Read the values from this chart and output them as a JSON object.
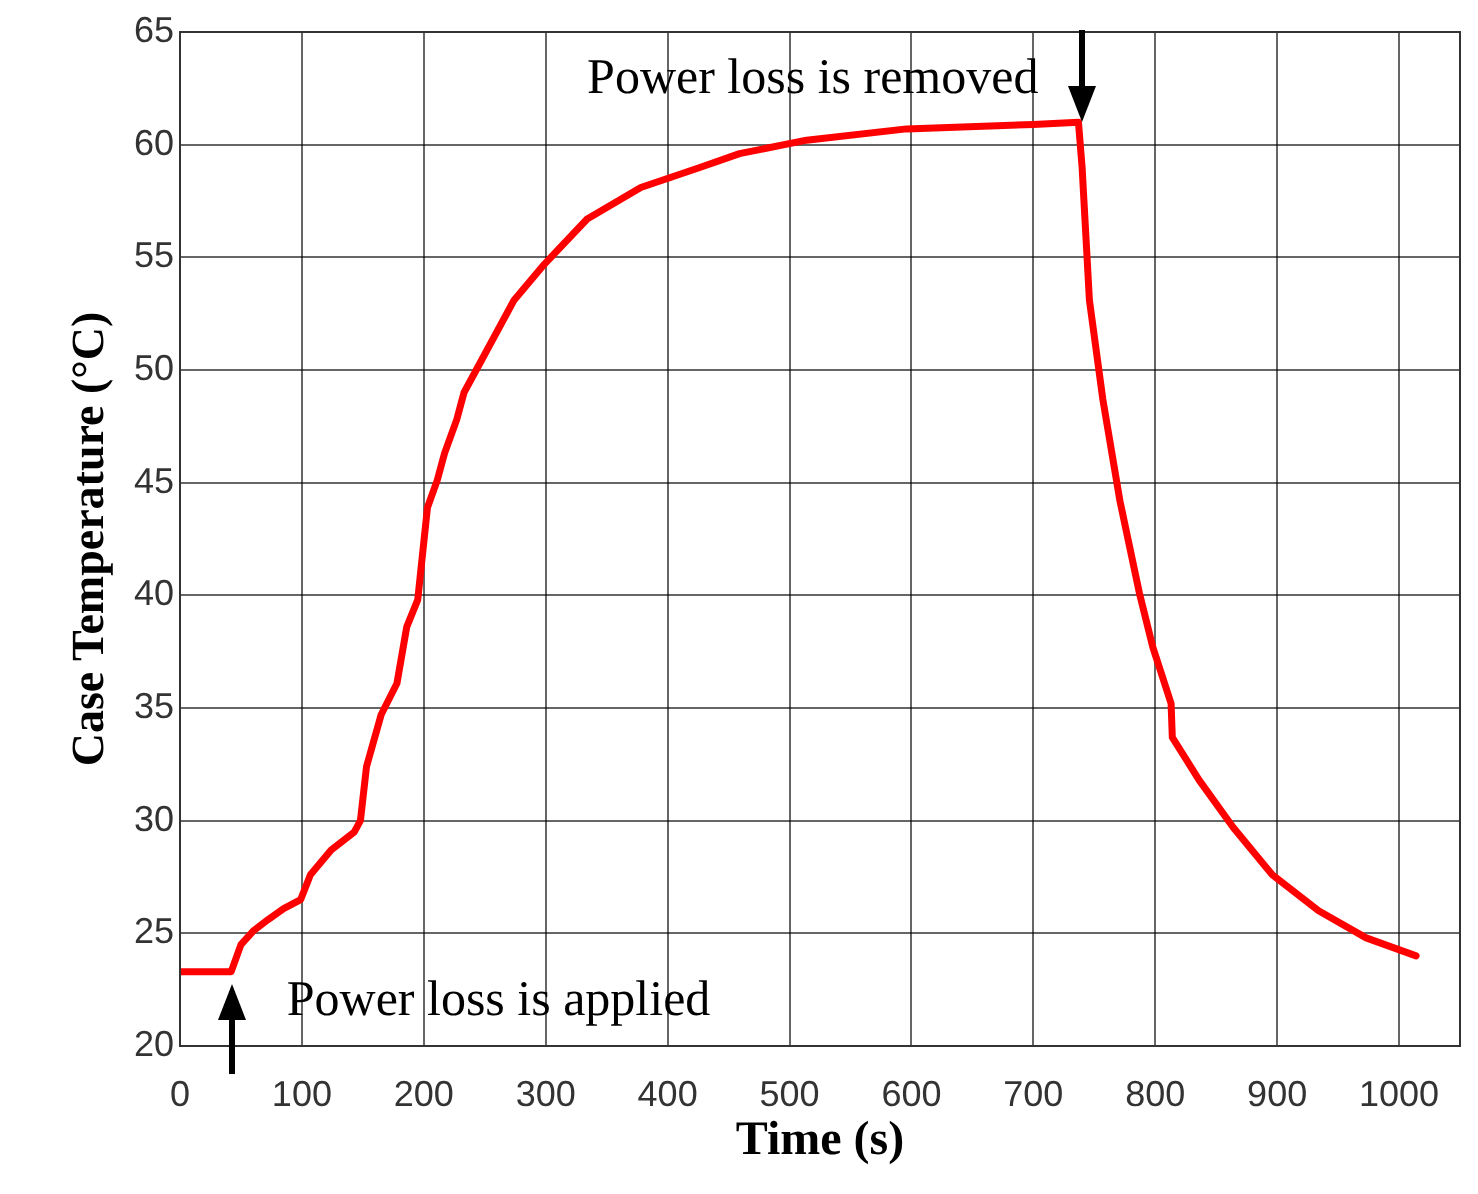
{
  "chart_data": {
    "type": "line",
    "xlabel": "Time (s)",
    "ylabel": "Case Temperature (°C)",
    "x": [
      0,
      42,
      50,
      60,
      72,
      85,
      99,
      107,
      124,
      143,
      148,
      153,
      165,
      178,
      186,
      195,
      203,
      211,
      217,
      227,
      233,
      247,
      274,
      299,
      334,
      378,
      427,
      459,
      514,
      596,
      700,
      737,
      740,
      746,
      757,
      771,
      787,
      798,
      813,
      814,
      836,
      864,
      896,
      934,
      973,
      1014
    ],
    "series": [
      {
        "color": "#ff0000",
        "values": [
          23.3,
          23.3,
          24.5,
          25.1,
          25.6,
          26.1,
          26.5,
          27.6,
          28.7,
          29.5,
          30.0,
          32.4,
          34.7,
          36.1,
          38.6,
          39.8,
          43.9,
          45.1,
          46.3,
          47.8,
          49.0,
          50.4,
          53.1,
          54.7,
          56.7,
          58.1,
          59.0,
          59.6,
          60.2,
          60.7,
          60.9,
          61.0,
          59.0,
          53.1,
          48.7,
          44.2,
          40.1,
          37.7,
          35.2,
          33.7,
          31.8,
          29.7,
          27.6,
          26.0,
          24.8,
          24.0
        ]
      }
    ],
    "xlim": [
      0,
      1050
    ],
    "ylim": [
      20,
      65
    ],
    "xticks": [
      0,
      100,
      200,
      300,
      400,
      500,
      600,
      700,
      800,
      900,
      1000
    ],
    "yticks": [
      20,
      25,
      30,
      35,
      40,
      45,
      50,
      55,
      60,
      65
    ],
    "grid": true,
    "annotations": [
      {
        "text": "Power loss is applied",
        "x": 40,
        "y": 23.3
      },
      {
        "text": "Power loss is removed",
        "x": 737,
        "y": 61.0
      }
    ]
  }
}
